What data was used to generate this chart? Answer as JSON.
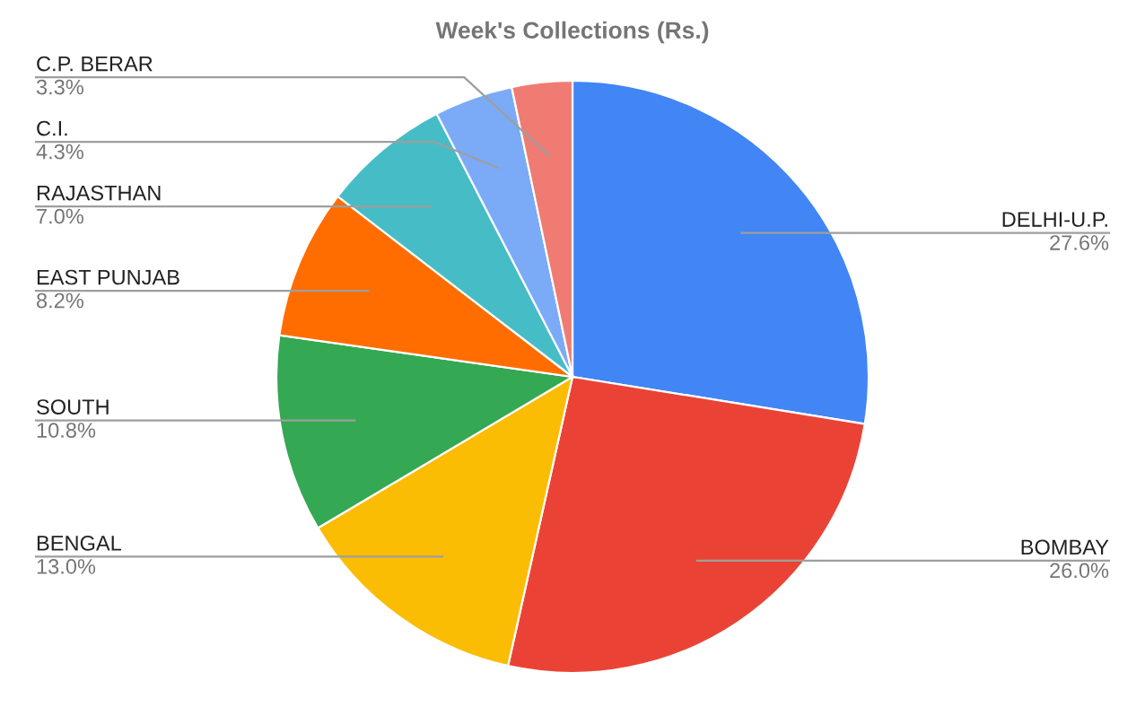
{
  "chart_data": {
    "type": "pie",
    "title": "Week's Collections (Rs.)",
    "categories": [
      "DELHI-U.P.",
      "BOMBAY",
      "BENGAL",
      "SOUTH",
      "EAST PUNJAB",
      "RAJASTHAN",
      "C.I.",
      "C.P. BERAR"
    ],
    "values": [
      27.6,
      26.0,
      13.0,
      10.8,
      8.2,
      7.0,
      4.3,
      3.3
    ],
    "value_labels": [
      "27.6%",
      "26.0%",
      "13.0%",
      "10.8%",
      "8.2%",
      "7.0%",
      "4.3%",
      "3.3%"
    ],
    "colors": [
      "#4285f4",
      "#ea4335",
      "#fbbc04",
      "#34a853",
      "#ff6d01",
      "#46bdc6",
      "#7baaf7",
      "#f07b72"
    ],
    "legend": false
  }
}
